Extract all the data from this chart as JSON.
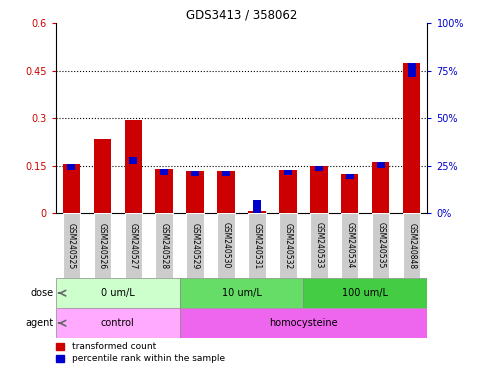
{
  "title": "GDS3413 / 358062",
  "samples": [
    "GSM240525",
    "GSM240526",
    "GSM240527",
    "GSM240528",
    "GSM240529",
    "GSM240530",
    "GSM240531",
    "GSM240532",
    "GSM240533",
    "GSM240534",
    "GSM240535",
    "GSM240848"
  ],
  "red_values": [
    0.155,
    0.235,
    0.295,
    0.138,
    0.132,
    0.133,
    0.008,
    0.135,
    0.148,
    0.124,
    0.16,
    0.475
  ],
  "blue_heights": [
    0.018,
    0.0,
    0.022,
    0.018,
    0.016,
    0.016,
    0.04,
    0.016,
    0.016,
    0.016,
    0.016,
    0.045
  ],
  "blue_bottoms": [
    0.137,
    0.0,
    0.155,
    0.12,
    0.116,
    0.117,
    0.0,
    0.119,
    0.132,
    0.108,
    0.144,
    0.43
  ],
  "ylim_left": [
    0,
    0.6
  ],
  "ylim_right": [
    0,
    100
  ],
  "yticks_left": [
    0,
    0.15,
    0.3,
    0.45,
    0.6
  ],
  "yticks_right": [
    0,
    25,
    50,
    75,
    100
  ],
  "ytick_labels_left": [
    "0",
    "0.15",
    "0.3",
    "0.45",
    "0.6"
  ],
  "ytick_labels_right": [
    "0%",
    "25%",
    "50%",
    "75%",
    "100%"
  ],
  "dose_groups": [
    {
      "label": "0 um/L",
      "start": 0,
      "end": 4,
      "color": "#ccffcc"
    },
    {
      "label": "10 um/L",
      "start": 4,
      "end": 8,
      "color": "#66dd66"
    },
    {
      "label": "100 um/L",
      "start": 8,
      "end": 12,
      "color": "#44cc44"
    }
  ],
  "agent_groups": [
    {
      "label": "control",
      "start": 0,
      "end": 4,
      "color": "#ffaaff"
    },
    {
      "label": "homocysteine",
      "start": 4,
      "end": 12,
      "color": "#ee66ee"
    }
  ],
  "dose_label": "dose",
  "agent_label": "agent",
  "legend_red": "transformed count",
  "legend_blue": "percentile rank within the sample",
  "bar_color_red": "#cc0000",
  "bar_color_blue": "#0000cc",
  "bar_width": 0.55,
  "blue_bar_width": 0.25,
  "tick_label_color_left": "#cc0000",
  "tick_label_color_right": "#0000cc",
  "sample_bg_color": "#cccccc",
  "sample_border_color": "#ffffff"
}
